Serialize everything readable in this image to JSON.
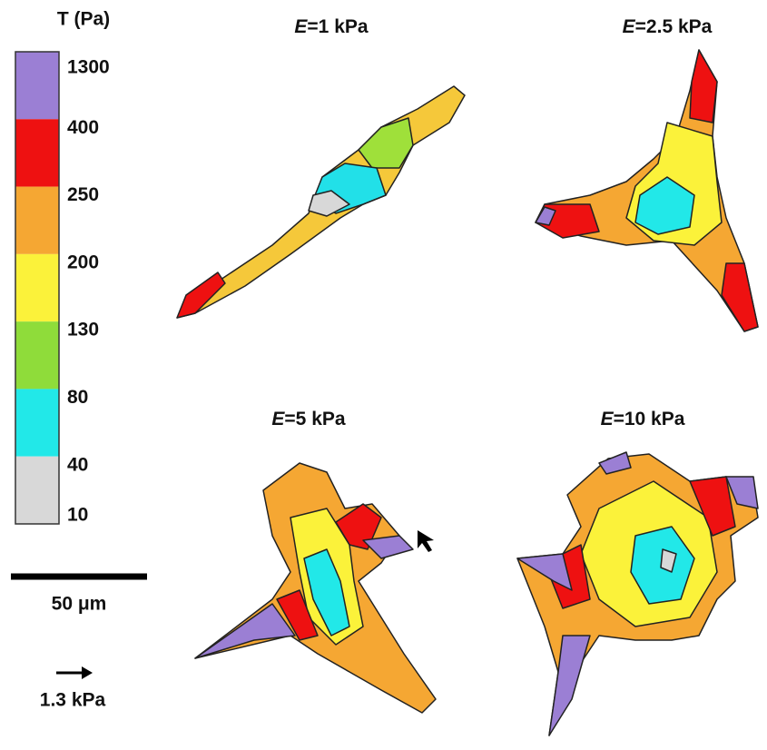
{
  "colorbar": {
    "title": "T (Pa)",
    "ticks": [
      1300,
      400,
      250,
      200,
      130,
      80,
      40,
      10
    ],
    "colors": [
      "#9b7fd4",
      "#ee1111",
      "#f5a733",
      "#fbf23a",
      "#8fdc3a",
      "#22e8e8",
      "#d8d8d8"
    ]
  },
  "scale_bar": {
    "label": "50 μm"
  },
  "arrow_scale": {
    "label": "1.3 kPa"
  },
  "panels": [
    {
      "symbol": "E",
      "text": "=1 kPa"
    },
    {
      "symbol": "E",
      "text": "=2.5 kPa"
    },
    {
      "symbol": "E",
      "text": "=5 kPa"
    },
    {
      "symbol": "E",
      "text": "=10 kPa"
    }
  ]
}
